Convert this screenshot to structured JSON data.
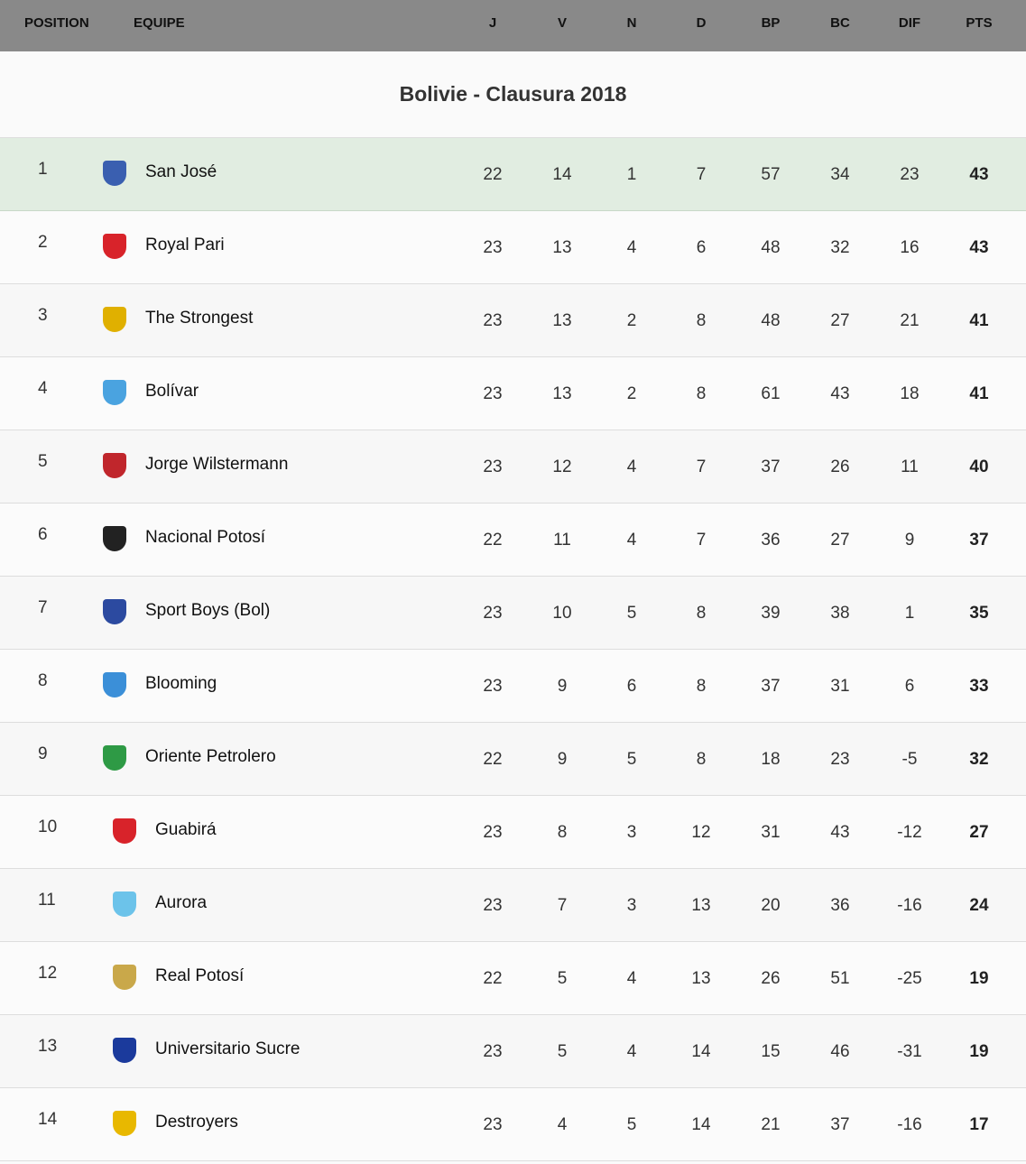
{
  "header": {
    "position": "POSITION",
    "team": "EQUIPE",
    "cols": [
      "J",
      "V",
      "N",
      "D",
      "BP",
      "BC",
      "DIF",
      "PTS"
    ]
  },
  "title": "Bolivie - Clausura 2018",
  "colors": {
    "header_bg": "#898989",
    "leader_bg": "#e1ede1"
  },
  "rows": [
    {
      "pos": "1",
      "team": "San José",
      "logo": "#3a5fb0",
      "stats": [
        "22",
        "14",
        "1",
        "7",
        "57",
        "34",
        "23",
        "43"
      ]
    },
    {
      "pos": "2",
      "team": "Royal Pari",
      "logo": "#d8232a",
      "stats": [
        "23",
        "13",
        "4",
        "6",
        "48",
        "32",
        "16",
        "43"
      ]
    },
    {
      "pos": "3",
      "team": "The Strongest",
      "logo": "#e0b000",
      "stats": [
        "23",
        "13",
        "2",
        "8",
        "48",
        "27",
        "21",
        "41"
      ]
    },
    {
      "pos": "4",
      "team": "Bolívar",
      "logo": "#4aa3e0",
      "stats": [
        "23",
        "13",
        "2",
        "8",
        "61",
        "43",
        "18",
        "41"
      ]
    },
    {
      "pos": "5",
      "team": "Jorge Wilstermann",
      "logo": "#c0262c",
      "stats": [
        "23",
        "12",
        "4",
        "7",
        "37",
        "26",
        "11",
        "40"
      ]
    },
    {
      "pos": "6",
      "team": "Nacional Potosí",
      "logo": "#222222",
      "stats": [
        "22",
        "11",
        "4",
        "7",
        "36",
        "27",
        "9",
        "37"
      ]
    },
    {
      "pos": "7",
      "team": "Sport Boys (Bol)",
      "logo": "#2c4aa0",
      "stats": [
        "23",
        "10",
        "5",
        "8",
        "39",
        "38",
        "1",
        "35"
      ]
    },
    {
      "pos": "8",
      "team": "Blooming",
      "logo": "#3b8fd8",
      "stats": [
        "23",
        "9",
        "6",
        "8",
        "37",
        "31",
        "6",
        "33"
      ]
    },
    {
      "pos": "9",
      "team": "Oriente Petrolero",
      "logo": "#2e9a45",
      "stats": [
        "22",
        "9",
        "5",
        "8",
        "18",
        "23",
        "-5",
        "32"
      ]
    },
    {
      "pos": "10",
      "team": "Guabirá",
      "logo": "#d8232a",
      "stats": [
        "23",
        "8",
        "3",
        "12",
        "31",
        "43",
        "-12",
        "27"
      ]
    },
    {
      "pos": "11",
      "team": "Aurora",
      "logo": "#6cc3ea",
      "stats": [
        "23",
        "7",
        "3",
        "13",
        "20",
        "36",
        "-16",
        "24"
      ]
    },
    {
      "pos": "12",
      "team": "Real Potosí",
      "logo": "#c9a84a",
      "stats": [
        "22",
        "5",
        "4",
        "13",
        "26",
        "51",
        "-25",
        "19"
      ]
    },
    {
      "pos": "13",
      "team": "Universitario Sucre",
      "logo": "#1b3a9c",
      "stats": [
        "23",
        "5",
        "4",
        "14",
        "15",
        "46",
        "-31",
        "19"
      ]
    },
    {
      "pos": "14",
      "team": "Destroyers",
      "logo": "#e8b800",
      "stats": [
        "23",
        "4",
        "5",
        "14",
        "21",
        "37",
        "-16",
        "17"
      ]
    }
  ]
}
